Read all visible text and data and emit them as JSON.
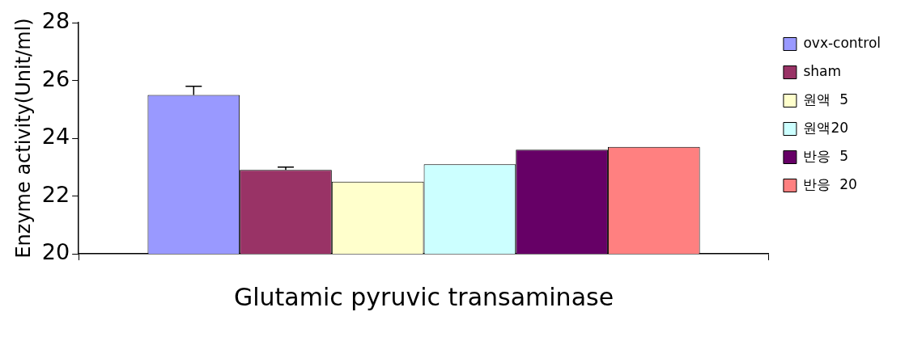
{
  "chart_data": {
    "type": "bar",
    "ylabel": "Enzyme activity(Unit/ml)",
    "categories": [
      "Glutamic pyruvic transaminase"
    ],
    "series": [
      {
        "name": "ovx-control",
        "color": "#9999ff",
        "values": [
          25.5
        ],
        "errors": [
          0.3
        ]
      },
      {
        "name": "sham",
        "color": "#993366",
        "values": [
          22.9
        ],
        "errors": [
          0.1
        ]
      },
      {
        "name": "원액  5",
        "color": "#ffffcc",
        "values": [
          22.5
        ],
        "errors": [
          null
        ]
      },
      {
        "name": "원액20",
        "color": "#ccffff",
        "values": [
          23.1
        ],
        "errors": [
          null
        ]
      },
      {
        "name": "반응  5",
        "color": "#660066",
        "values": [
          23.6
        ],
        "errors": [
          null
        ]
      },
      {
        "name": "반응  20",
        "color": "#ff8080",
        "values": [
          23.7
        ],
        "errors": [
          null
        ]
      }
    ],
    "ylim": [
      20,
      28
    ],
    "yticks": [
      20,
      22,
      24,
      26,
      28
    ],
    "grid": false,
    "legend": "top right"
  }
}
